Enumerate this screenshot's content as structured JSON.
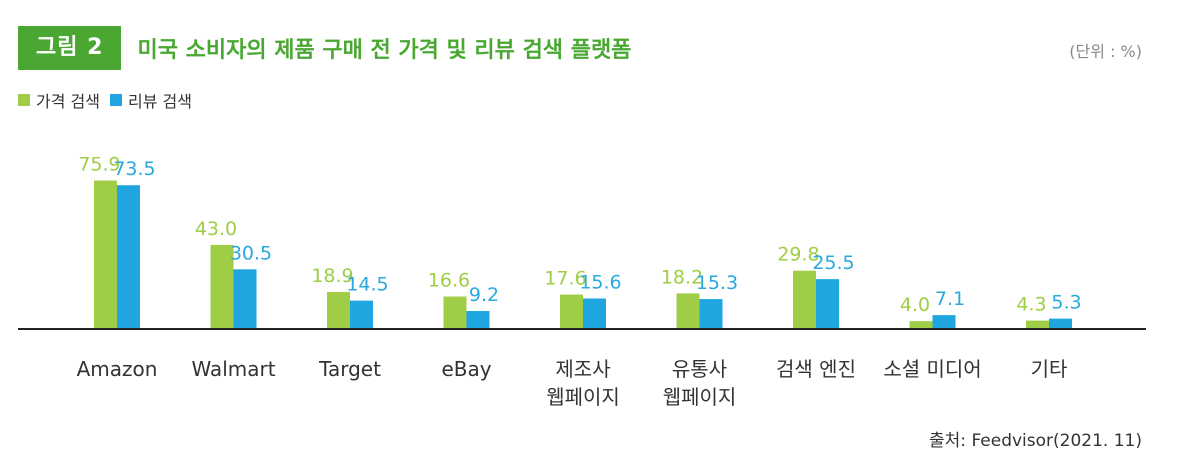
{
  "header": {
    "figure_label": "그림 2",
    "title": "미국 소비자의 제품 구매 전 가격 및 리뷰 검색 플랫폼",
    "unit": "(단위 : %)"
  },
  "source": "출처: Feedvisor(2021. 11)",
  "colors": {
    "price": "#9fcd45",
    "review": "#1fa6e0",
    "accent": "#4aa832",
    "axis": "#222222"
  },
  "chart_data": {
    "type": "bar",
    "categories": [
      [
        "Amazon"
      ],
      [
        "Walmart"
      ],
      [
        "Target"
      ],
      [
        "eBay"
      ],
      [
        "제조사",
        "웹페이지"
      ],
      [
        "유통사",
        "웹페이지"
      ],
      [
        "검색 엔진"
      ],
      [
        "소셜 미디어"
      ],
      [
        "기타"
      ]
    ],
    "series": [
      {
        "name": "가격 검색",
        "values": [
          75.9,
          43.0,
          18.9,
          16.6,
          17.6,
          18.2,
          29.8,
          4.0,
          4.3
        ]
      },
      {
        "name": "리뷰 검색",
        "values": [
          73.5,
          30.5,
          14.5,
          9.2,
          15.6,
          15.3,
          25.5,
          7.1,
          5.3
        ]
      }
    ],
    "ylim": [
      0,
      80
    ],
    "grid": false,
    "legend_position": "top-left"
  }
}
